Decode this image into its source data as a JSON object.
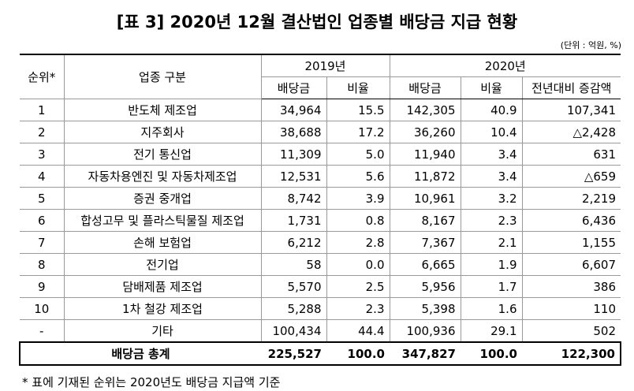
{
  "title": "[표 3] 2020년 12월 결산법인 업종별 배당금 지급 현황",
  "unit": "(단위 : 억원, %)",
  "table": {
    "header": {
      "rank": "순위*",
      "industry": "업종 구분",
      "years": [
        "2019년",
        "2020년"
      ],
      "columns": [
        "배당금",
        "비율",
        "배당금",
        "비율",
        "전년대비 증감액"
      ]
    },
    "rows": [
      [
        "1",
        "반도체 제조업",
        "34,964",
        "15.5",
        "142,305",
        "40.9",
        "107,341"
      ],
      [
        "2",
        "지주회사",
        "38,688",
        "17.2",
        "36,260",
        "10.4",
        "△2,428"
      ],
      [
        "3",
        "전기 통신업",
        "11,309",
        "5.0",
        "11,940",
        "3.4",
        "631"
      ],
      [
        "4",
        "자동차용엔진 및 자동차제조업",
        "12,531",
        "5.6",
        "11,872",
        "3.4",
        "△659"
      ],
      [
        "5",
        "증권 중개업",
        "8,742",
        "3.9",
        "10,961",
        "3.2",
        "2,219"
      ],
      [
        "6",
        "합성고무 및 플라스틱물질 제조업",
        "1,731",
        "0.8",
        "8,167",
        "2.3",
        "6,436"
      ],
      [
        "7",
        "손해 보험업",
        "6,212",
        "2.8",
        "7,367",
        "2.1",
        "1,155"
      ],
      [
        "8",
        "전기업",
        "58",
        "0.0",
        "6,665",
        "1.9",
        "6,607"
      ],
      [
        "9",
        "담배제품 제조업",
        "5,570",
        "2.5",
        "5,956",
        "1.7",
        "386"
      ],
      [
        "10",
        "1차 철강 제조업",
        "5,288",
        "2.3",
        "5,398",
        "1.6",
        "110"
      ],
      [
        "-",
        "기타",
        "100,434",
        "44.4",
        "100,936",
        "29.1",
        "502"
      ]
    ],
    "total": [
      "배당금 총계",
      "225,527",
      "100.0",
      "347,827",
      "100.0",
      "122,300"
    ]
  },
  "footnote": "* 표에 기재된 순위는 2020년도 배당금 지급액 기준"
}
